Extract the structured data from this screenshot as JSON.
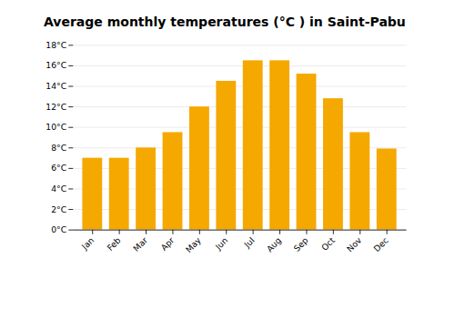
{
  "chart_data": {
    "type": "bar",
    "title": "Average monthly temperatures (°C ) in Saint-Pabu",
    "categories": [
      "Jan",
      "Feb",
      "Mar",
      "Apr",
      "May",
      "Jun",
      "Jul",
      "Aug",
      "Sep",
      "Oct",
      "Nov",
      "Dec"
    ],
    "values": [
      7.0,
      7.0,
      8.0,
      9.5,
      12.0,
      14.5,
      16.5,
      16.5,
      15.2,
      12.8,
      9.5,
      7.9
    ],
    "color": "#F5A800",
    "ylim": [
      0,
      18
    ],
    "yticks": [
      {
        "value": 0,
        "label": "0°C"
      },
      {
        "value": 2,
        "label": "2°C"
      },
      {
        "value": 4,
        "label": "4°C"
      },
      {
        "value": 6,
        "label": "6°C"
      },
      {
        "value": 8,
        "label": "8°C"
      },
      {
        "value": 10,
        "label": "10°C"
      },
      {
        "value": 12,
        "label": "12°C"
      },
      {
        "value": 14,
        "label": "14°C"
      },
      {
        "value": 16,
        "label": "16°C"
      },
      {
        "value": 18,
        "label": "18°C"
      }
    ],
    "grid": true
  }
}
